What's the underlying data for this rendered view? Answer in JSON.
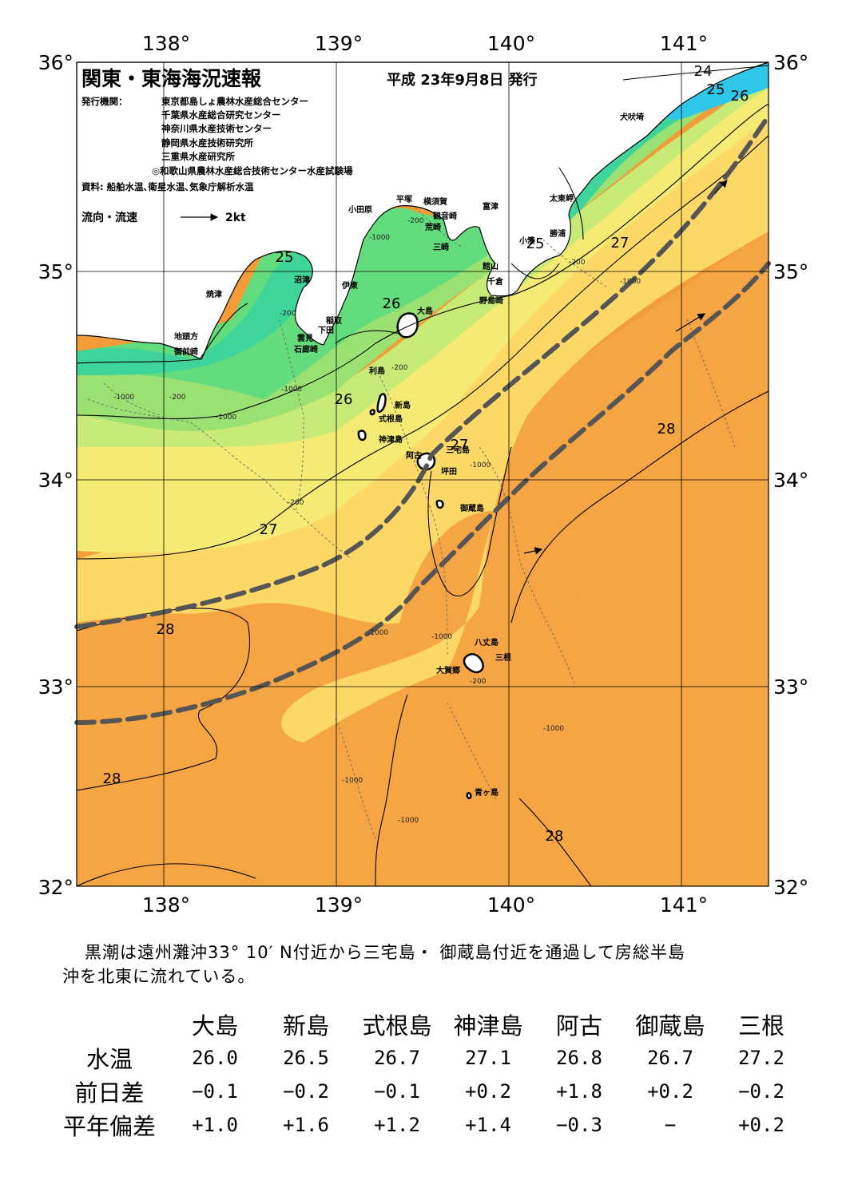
{
  "map": {
    "title": "関東・東海海況速報",
    "issue_date": "平成 23年9月8日 発行",
    "issuers_label": "発行機関：",
    "issuers": [
      "東京都島しょ農林水産総合センター",
      "千葉県水産総合研究センター",
      "神奈川県水産技術センター",
      "静岡県水産技術研究所",
      "三重県水産研究所",
      "◎和歌山県農林水産総合技術センター水産試験場"
    ],
    "sources": "資料: 船舶水温､衛星水温､気象庁解析水温",
    "current_legend": {
      "label": "流向・流速",
      "speed": "2kt"
    },
    "lon_ticks": [
      "138°",
      "139°",
      "140°",
      "141°"
    ],
    "lat_ticks": [
      "36°",
      "35°",
      "34°",
      "33°",
      "32°"
    ],
    "isotherm_labels": [
      "24",
      "25",
      "26",
      "27",
      "28"
    ],
    "depth_labels": [
      "-200",
      "-1000"
    ],
    "place_names": {
      "inubozaki": "犬吠埼",
      "taitomisaki": "太東岬",
      "katsuura": "勝浦",
      "kominato": "小湊",
      "futtsu": "富津",
      "yokosuka": "横須賀",
      "kannonzaki": "観音崎",
      "arasaki": "荒崎",
      "misaki": "三崎",
      "hiratsuka": "平塚",
      "odawara": "小田原",
      "tateyama": "館山",
      "chikura": "千倉",
      "nojimazaki": "野島崎",
      "numazu": "沼津",
      "ito": "伊東",
      "inatori": "稲取",
      "shimoda": "下田",
      "kumomi": "雲見",
      "irozaki": "石廊崎",
      "yaizu": "焼津",
      "jitokata": "地頭方",
      "omaezaki": "御前崎",
      "oshima": "大島",
      "toshima": "利島",
      "niijima": "新島",
      "shikinejima": "式根島",
      "kozushima": "神津島",
      "miyakejima": "三宅島",
      "ako": "阿古",
      "tsubota": "坪田",
      "mikurajima": "御蔵島",
      "hachijojima": "八丈島",
      "mitsune": "三根",
      "okago": "大賀郷",
      "aogashima": "青ヶ島"
    }
  },
  "summary": {
    "line1": "黒潮は遠州灘沖33° 10′ N付近から三宅島・ 御蔵島付近を通過して房総半島",
    "line2": "沖を北東に流れている。"
  },
  "observations": {
    "stations": [
      "大島",
      "新島",
      "式根島",
      "神津島",
      "阿古",
      "御蔵島",
      "三根"
    ],
    "rows": [
      {
        "label": "水温",
        "values": [
          "26.0",
          "26.5",
          "26.7",
          "27.1",
          "26.8",
          "26.7",
          "27.2"
        ]
      },
      {
        "label": "前日差",
        "values": [
          "−0.1",
          "−0.2",
          "−0.1",
          "+0.2",
          "+1.8",
          "+0.2",
          "−0.2"
        ]
      },
      {
        "label": "平年偏差",
        "values": [
          "+1.0",
          "+1.6",
          "+1.2",
          "+1.4",
          "−0.3",
          "−",
          "+0.2"
        ]
      }
    ]
  },
  "colors": {
    "t24": "#2ec7e8",
    "t25": "#3fd49a",
    "t25b": "#62dc7c",
    "t26": "#9be072",
    "t26b": "#c8ea76",
    "t27": "#f4ea74",
    "t27b": "#fcd967",
    "t28": "#f9b84e",
    "t28b": "#f39c38",
    "t29": "#f07a2a",
    "land": "#ffffff",
    "kuroshio_axis": "#555555"
  }
}
